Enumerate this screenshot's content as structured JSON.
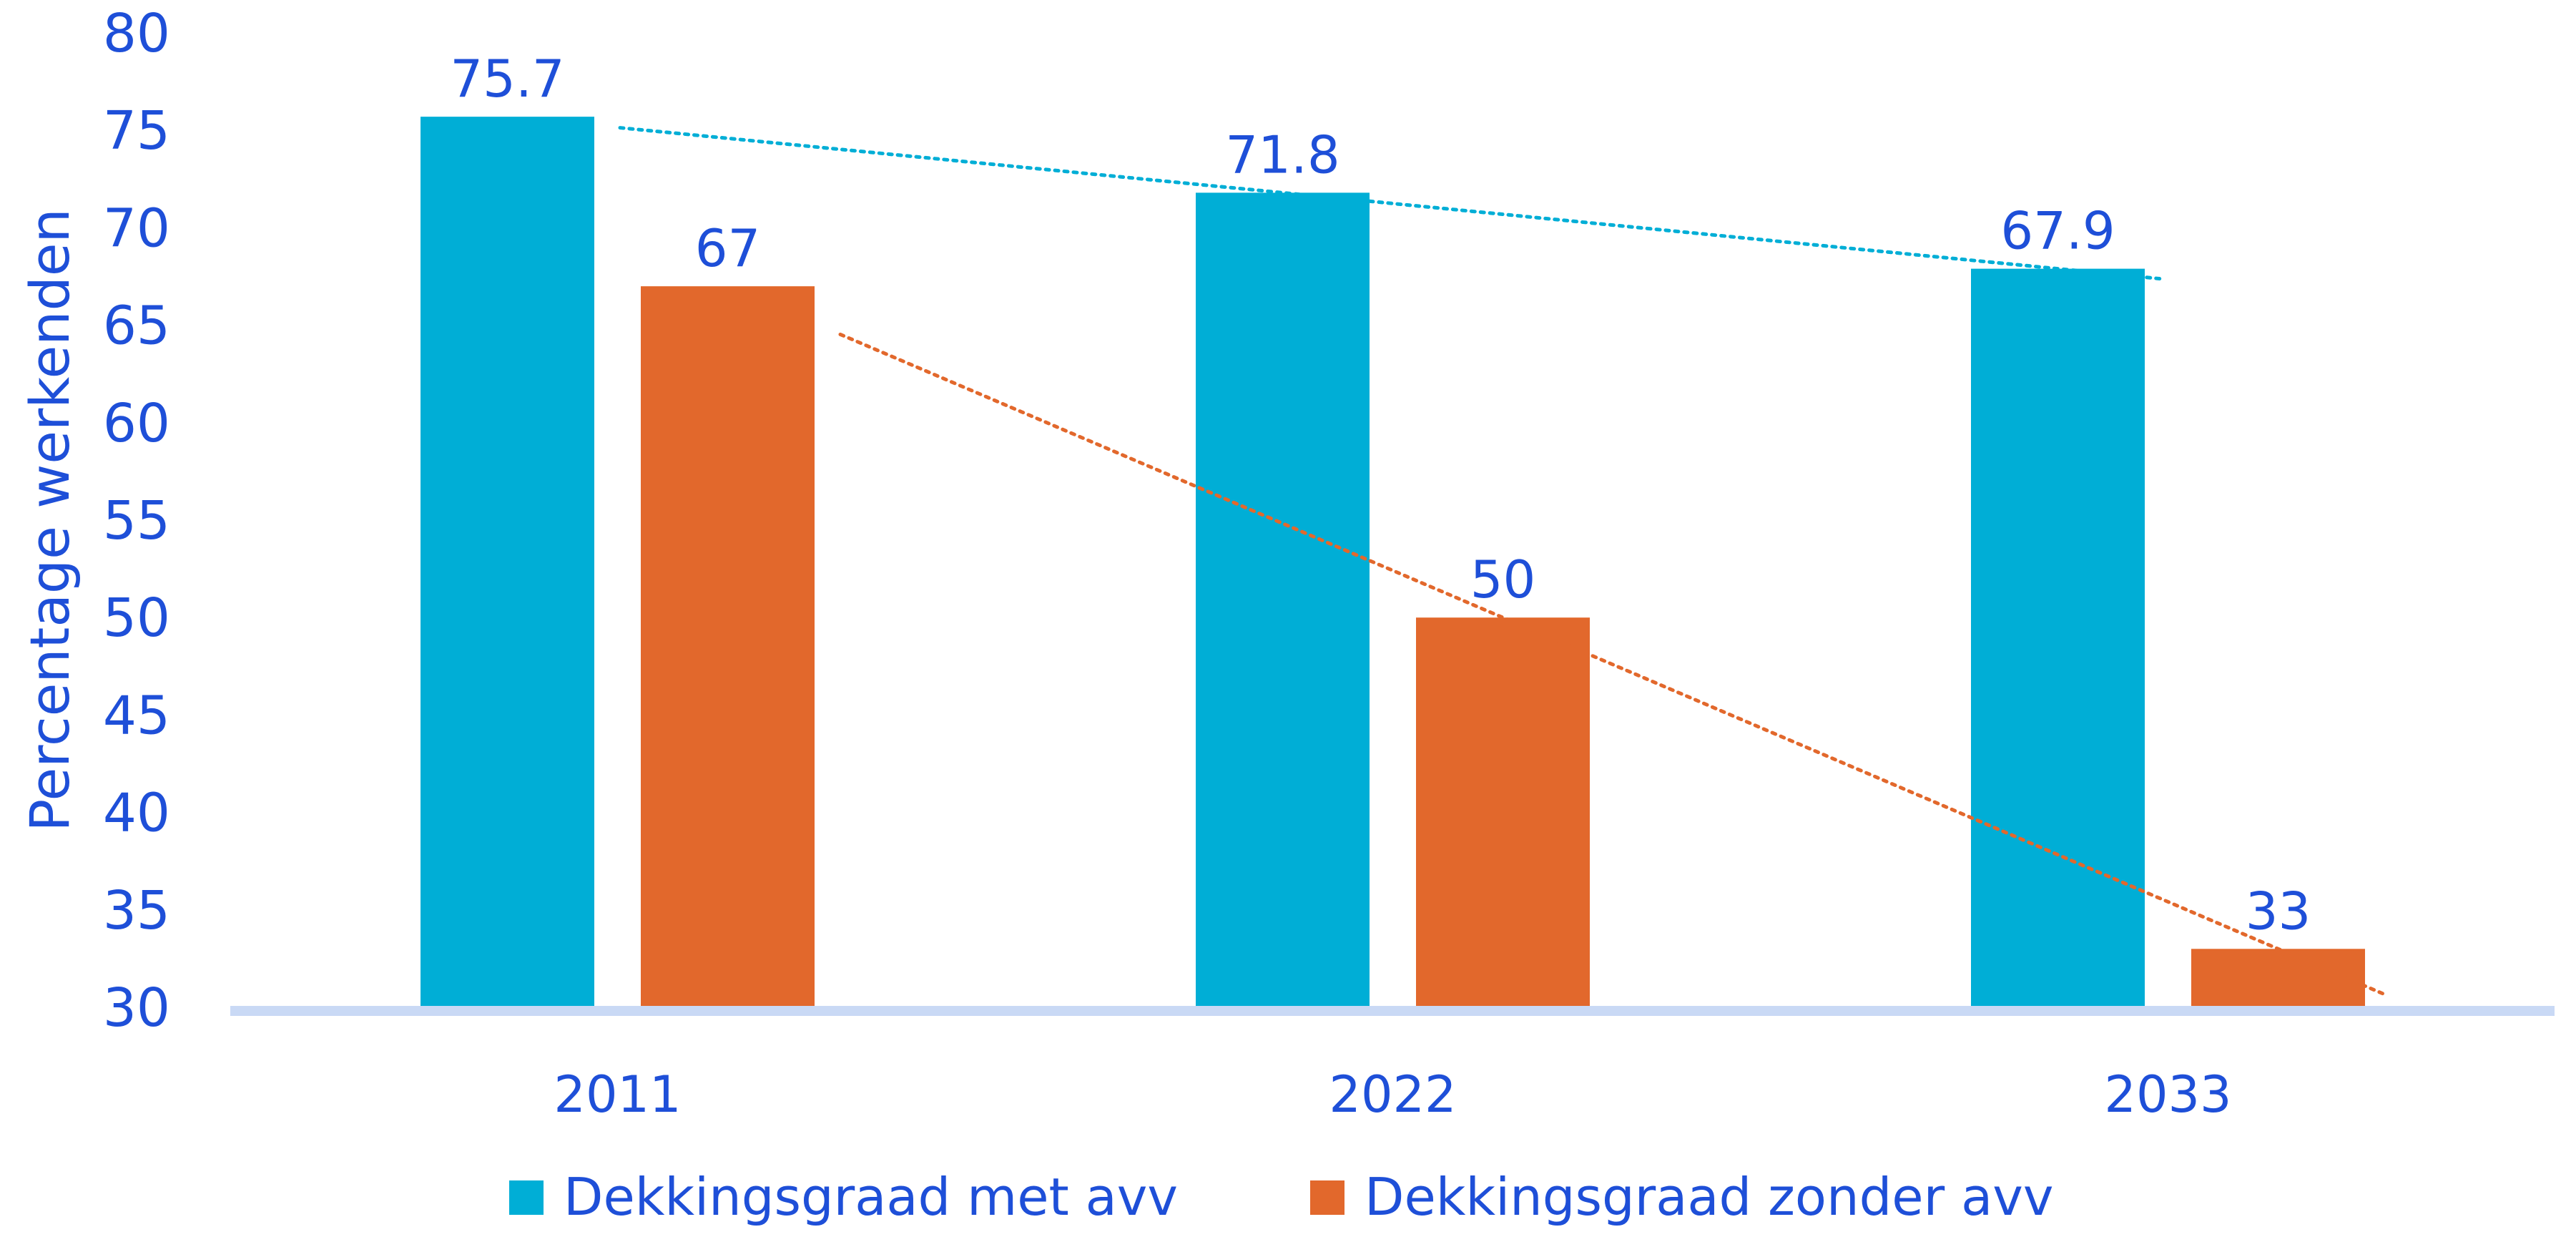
{
  "chart_data": {
    "type": "bar",
    "categories": [
      "2011",
      "2022",
      "2033"
    ],
    "series": [
      {
        "name": "Dekkingsgraad met avv",
        "values": [
          75.7,
          71.8,
          67.9
        ],
        "labels": [
          "75.7",
          "71.8",
          "67.9"
        ],
        "color": "#00AED6"
      },
      {
        "name": "Dekkingsgraad zonder avv",
        "values": [
          67,
          50,
          33
        ],
        "labels": [
          "67",
          "50",
          "33"
        ],
        "color": "#E2682C"
      }
    ],
    "ylabel": "Percentage werkenden",
    "xlabel": "",
    "ylim": [
      30,
      80
    ],
    "yticks": [
      30,
      35,
      40,
      45,
      50,
      55,
      60,
      65,
      70,
      75,
      80
    ],
    "trendlines": true,
    "grid": false,
    "legend_position": "bottom",
    "colors": {
      "text": "#1E4FD8",
      "axis_line": "#C9D9F5"
    }
  }
}
